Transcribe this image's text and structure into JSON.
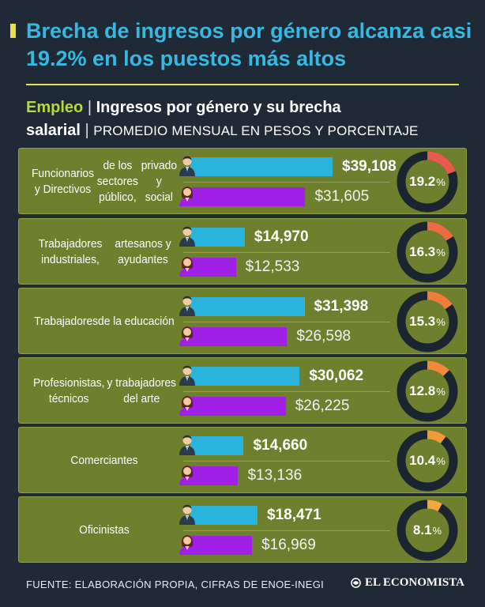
{
  "header": {
    "title": "Brecha de ingresos por género alcanza casi 19.2% en los puestos más altos",
    "subtitle_section": "Empleo",
    "subtitle_separator": "|",
    "subtitle_main_a": "Ingresos por género y su brecha",
    "subtitle_main_b": "salarial",
    "subtitle_units": "PROMEDIO MENSUAL EN PESOS Y PORCENTAJE"
  },
  "chart_data": {
    "type": "bar",
    "orientation": "horizontal",
    "categories": [
      "Funcionarios y Directivos de los sectores público, privado y social",
      "Trabajadores industriales, artesanos y ayudantes",
      "Trabajadores de la educación",
      "Profesionistas, técnicos y trabajadores del arte",
      "Comerciantes",
      "Oficinistas"
    ],
    "category_lines": [
      [
        "Funcionarios y Directivos",
        "de los sectores público,",
        "privado y social"
      ],
      [
        "Trabajadores industriales,",
        "artesanos y ayudantes"
      ],
      [
        "Trabajadores",
        "de la educación"
      ],
      [
        "Profesionistas, técnicos",
        "y trabajadores del arte"
      ],
      [
        "Comerciantes"
      ],
      [
        "Oficinistas"
      ]
    ],
    "series": [
      {
        "values": [
          39108,
          14970,
          31398,
          30062,
          14660,
          18471
        ],
        "labels": [
          "$39,108",
          "$14,970",
          "$31,398",
          "$30,062",
          "$14,660",
          "$18,471"
        ],
        "color": "#29b4dc",
        "icon": "man-icon"
      },
      {
        "values": [
          31605,
          12533,
          26598,
          26225,
          13136,
          16969
        ],
        "labels": [
          "$31,605",
          "$12,533",
          "$26,598",
          "$26,225",
          "$13,136",
          "$16,969"
        ],
        "color": "#a020e8",
        "icon": "woman-icon"
      }
    ],
    "gap_percent": [
      19.2,
      16.3,
      15.3,
      12.8,
      10.4,
      8.1
    ],
    "gap_labels": [
      "19.2",
      "16.3",
      "15.3",
      "12.8",
      "10.4",
      "8.1"
    ],
    "gap_colors": [
      "#e85a4f",
      "#ec6a44",
      "#ef7c3c",
      "#f08a3a",
      "#f29a3a",
      "#f3a83e"
    ],
    "percent_sign": "%",
    "donut_track_color": "#1b2530",
    "panel_color": "#6e7f2e",
    "xlim": [
      0,
      40000
    ]
  },
  "footer": {
    "source": "FUENTE: ELABORACIÓN PROPIA, CIFRAS DE ENOE-INEGI",
    "brand": "EL ECONOMISTA"
  }
}
